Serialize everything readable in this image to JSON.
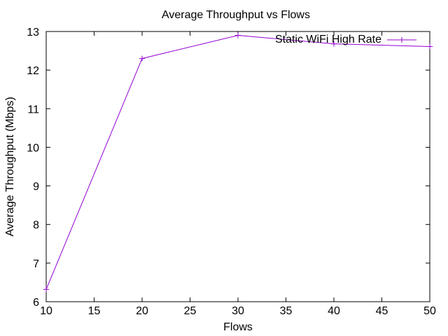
{
  "chart_data": {
    "type": "line",
    "title": "Average Throughput vs Flows",
    "xlabel": "Flows",
    "ylabel": "Average Throughput (Mbps)",
    "xlim": [
      10,
      50
    ],
    "ylim": [
      6,
      13
    ],
    "xticks": [
      10,
      15,
      20,
      25,
      30,
      35,
      40,
      45,
      50
    ],
    "yticks": [
      6,
      7,
      8,
      9,
      10,
      11,
      12,
      13
    ],
    "grid": false,
    "legend_position": "top-right",
    "series": [
      {
        "name": "Static WiFi High Rate",
        "color": "#9400d3",
        "marker": "plus",
        "x": [
          10,
          20,
          30,
          40,
          50
        ],
        "y": [
          6.32,
          12.3,
          12.9,
          12.68,
          12.61
        ]
      }
    ]
  }
}
